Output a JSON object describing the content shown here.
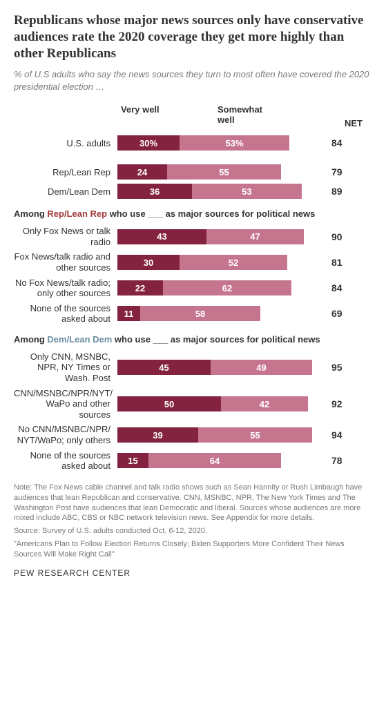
{
  "title": "Republicans whose major news sources only have conservative audiences rate the 2020 coverage they get more highly than other Republicans",
  "subtitle": "% of U.S adults who say the news sources they turn to most often have covered the 2020 presidential election …",
  "colors": {
    "very": "#832340",
    "somewhat": "#c6758e",
    "text_light": "#777",
    "rep": "#a23a3a",
    "dem": "#6b8fa3"
  },
  "legend": {
    "very": "Very well",
    "somewhat": "Somewhat well",
    "net": "NET"
  },
  "bar_scale_max": 100,
  "top_rows": [
    {
      "label": "U.S. adults",
      "very": 30,
      "very_label": "30%",
      "somewhat": 53,
      "somewhat_label": "53%",
      "net": 84
    }
  ],
  "party_rows": [
    {
      "label": "Rep/Lean Rep",
      "very": 24,
      "very_label": "24",
      "somewhat": 55,
      "somewhat_label": "55",
      "net": 79
    },
    {
      "label": "Dem/Lean Dem",
      "very": 36,
      "very_label": "36",
      "somewhat": 53,
      "somewhat_label": "53",
      "net": 89
    }
  ],
  "rep_header_pre": "Among ",
  "rep_header_highlight": "Rep/Lean Rep",
  "rep_header_post": " who use ___ as major sources for political news",
  "rep_rows": [
    {
      "label": "Only Fox News or talk radio",
      "very": 43,
      "very_label": "43",
      "somewhat": 47,
      "somewhat_label": "47",
      "net": 90
    },
    {
      "label": "Fox News/talk radio and other sources",
      "very": 30,
      "very_label": "30",
      "somewhat": 52,
      "somewhat_label": "52",
      "net": 81
    },
    {
      "label": "No Fox News/talk radio; only other sources",
      "very": 22,
      "very_label": "22",
      "somewhat": 62,
      "somewhat_label": "62",
      "net": 84
    },
    {
      "label": "None of the sources asked about",
      "very": 11,
      "very_label": "11",
      "somewhat": 58,
      "somewhat_label": "58",
      "net": 69
    }
  ],
  "dem_header_pre": "Among ",
  "dem_header_highlight": "Dem/Lean Dem",
  "dem_header_post": " who use ___ as major sources for political news",
  "dem_rows": [
    {
      "label": "Only CNN, MSNBC, NPR, NY Times or Wash. Post",
      "very": 45,
      "very_label": "45",
      "somewhat": 49,
      "somewhat_label": "49",
      "net": 95
    },
    {
      "label": "CNN/MSNBC/NPR/NYT/ WaPo and other sources",
      "very": 50,
      "very_label": "50",
      "somewhat": 42,
      "somewhat_label": "42",
      "net": 92
    },
    {
      "label": "No CNN/MSNBC/NPR/ NYT/WaPo; only others",
      "very": 39,
      "very_label": "39",
      "somewhat": 55,
      "somewhat_label": "55",
      "net": 94
    },
    {
      "label": "None of the sources asked about",
      "very": 15,
      "very_label": "15",
      "somewhat": 64,
      "somewhat_label": "64",
      "net": 78
    }
  ],
  "note1": "Note: The Fox News cable channel and talk radio shows such as Sean Hannity or Rush Limbaugh have audiences that lean Republican and conservative. CNN, MSNBC, NPR, The New York Times and The Washington Post have audiences that lean Democratic and liberal. Sources whose audiences are more mixed include ABC, CBS or NBC network television news. See Appendix for more details.",
  "note2": "Source: Survey of U.S. adults conducted Oct. 6-12, 2020.",
  "note3": "\"Americans Plan to Follow Election Returns Closely; Biden Supporters More Confident Their News Sources Will Make Right Call\"",
  "footer": "PEW RESEARCH CENTER"
}
